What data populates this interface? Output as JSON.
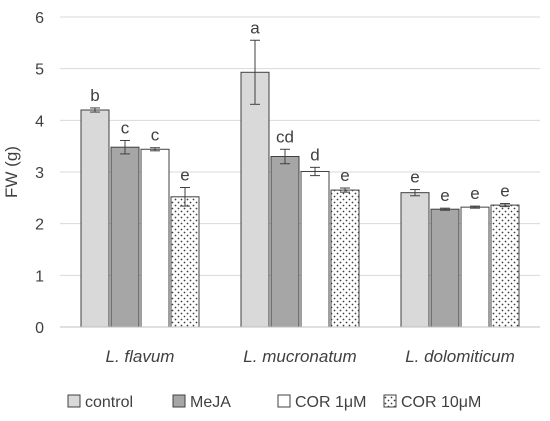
{
  "chart_data": {
    "type": "bar",
    "ylabel": "FW (g)",
    "ylim": [
      0,
      6
    ],
    "yticks": [
      "0",
      "1",
      "2",
      "3",
      "4",
      "5",
      "6"
    ],
    "grid": true,
    "legend_placement": "bottom",
    "categories": [
      "L. flavum",
      "L. mucronatum",
      "L. dolomiticum"
    ],
    "series": [
      {
        "name": "control",
        "color": "#d9d9d9",
        "pattern": "solid",
        "values": [
          4.2,
          4.93,
          2.6
        ],
        "errors": [
          0.04,
          0.62,
          0.06
        ],
        "labels": [
          "b",
          "a",
          "e"
        ]
      },
      {
        "name": "MeJA",
        "color": "#a6a6a6",
        "pattern": "solid",
        "values": [
          3.48,
          3.3,
          2.28
        ],
        "errors": [
          0.13,
          0.14,
          0.02
        ],
        "labels": [
          "c",
          "cd",
          "e"
        ]
      },
      {
        "name": "COR 1μM",
        "color": "#ffffff",
        "pattern": "solid",
        "values": [
          3.44,
          3.01,
          2.32
        ],
        "errors": [
          0.03,
          0.08,
          0.02
        ],
        "labels": [
          "c",
          "d",
          "e"
        ]
      },
      {
        "name": "COR 10μM",
        "color": "#ffffff",
        "pattern": "dots",
        "values": [
          2.52,
          2.65,
          2.36
        ],
        "errors": [
          0.18,
          0.04,
          0.03
        ],
        "labels": [
          "e",
          "e",
          "e"
        ]
      }
    ]
  }
}
